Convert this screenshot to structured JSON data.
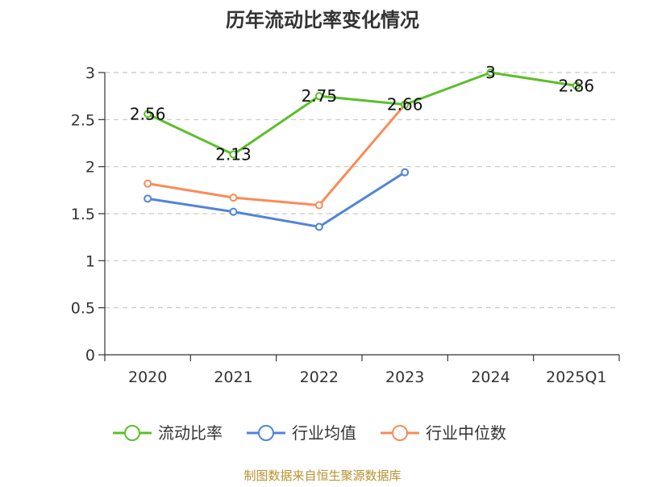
{
  "source": "制图数据来自恒生聚源数据库",
  "chart_data": {
    "type": "line",
    "title": "历年流动比率变化情况",
    "xlabel": "",
    "ylabel": "",
    "categories": [
      "2020",
      "2021",
      "2022",
      "2023",
      "2024",
      "2025Q1"
    ],
    "ylim": [
      0,
      3
    ],
    "yticks": [
      0,
      0.5,
      1,
      1.5,
      2,
      2.5,
      3
    ],
    "grid": true,
    "legend_position": "bottom",
    "series": [
      {
        "name": "流动比率",
        "color": "#5bbf2a",
        "values": [
          2.56,
          2.13,
          2.75,
          2.66,
          3,
          2.86
        ],
        "show_labels": true
      },
      {
        "name": "行业均值",
        "color": "#4f84db",
        "values": [
          1.66,
          1.52,
          1.36,
          1.94,
          null,
          null
        ],
        "show_labels": false
      },
      {
        "name": "行业中位数",
        "color": "#f98b58",
        "values": [
          1.82,
          1.67,
          1.59,
          2.66,
          null,
          null
        ],
        "show_labels": false
      }
    ],
    "data_labels": [
      "2.56",
      "2.13",
      "2.75",
      "2.66",
      "3",
      "2.86"
    ],
    "ytick_labels": [
      "0",
      "0.5",
      "1",
      "1.5",
      "2",
      "2.5",
      "3"
    ]
  }
}
